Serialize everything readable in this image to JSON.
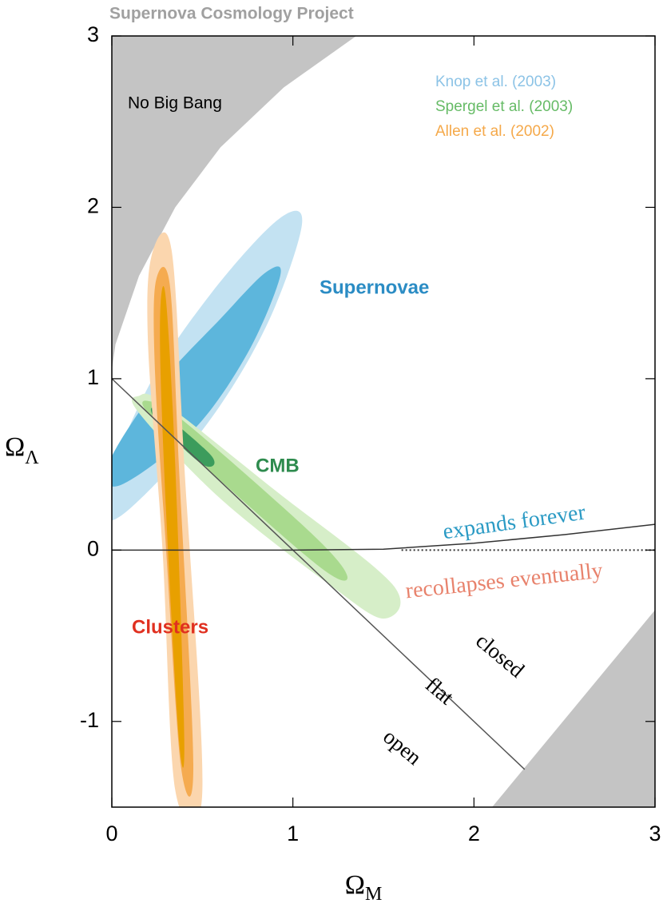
{
  "chart_data": {
    "type": "contour",
    "title": "Supernova Cosmology Project",
    "xlabel": {
      "symbol": "Ω",
      "subscript": "M"
    },
    "ylabel": {
      "symbol": "Ω",
      "subscript": "Λ"
    },
    "xlim": [
      0,
      3
    ],
    "ylim": [
      -1.5,
      3
    ],
    "xticks": [
      0,
      1,
      2,
      3
    ],
    "yticks": [
      -1,
      0,
      1,
      2,
      3
    ],
    "series": [
      {
        "name": "Knop et al. (2003)",
        "label": "Supernovae",
        "color": "#8cc3e6",
        "label_color": "#2b8cc4",
        "contours": [
          {
            "color": "#c3e2f2",
            "x": [
              1.05,
              0.85,
              0.5,
              0.05,
              -0.05,
              0.2,
              0.55,
              0.92
            ],
            "y": [
              1.9,
              1.3,
              0.7,
              0.2,
              0.3,
              0.95,
              1.5,
              1.93
            ]
          },
          {
            "color": "#5db6dc",
            "x": [
              0.93,
              0.75,
              0.45,
              0.05,
              -0.02,
              0.25,
              0.6,
              0.85
            ],
            "y": [
              1.6,
              1.15,
              0.7,
              0.38,
              0.5,
              0.95,
              1.35,
              1.62
            ]
          }
        ]
      },
      {
        "name": "Spergel et al. (2003)",
        "label": "CMB",
        "color": "#66bb66",
        "label_color": "#2e8b4e",
        "contours": [
          {
            "color": "#d6eec8",
            "x": [
              0.15,
              0.3,
              0.9,
              1.55,
              1.5,
              1.2,
              0.6,
              0.15
            ],
            "y": [
              0.9,
              0.85,
              0.35,
              -0.2,
              -0.4,
              -0.2,
              0.3,
              0.8
            ]
          },
          {
            "color": "#a9da8e",
            "x": [
              0.2,
              0.4,
              1.1,
              1.3,
              1.15,
              0.5,
              0.2
            ],
            "y": [
              0.87,
              0.75,
              0.1,
              -0.15,
              -0.1,
              0.5,
              0.8
            ]
          },
          {
            "color": "#3c9c5c",
            "x": [
              0.25,
              0.55,
              0.5,
              0.25
            ],
            "y": [
              0.82,
              0.55,
              0.5,
              0.75
            ]
          }
        ]
      },
      {
        "name": "Allen et al. (2002)",
        "label": "Clusters",
        "color": "#f5a94a",
        "label_color": "#e03020",
        "contours": [
          {
            "color": "#fbd6ae",
            "x": [
              0.22,
              0.33,
              0.4,
              0.5,
              0.35,
              0.28,
              0.2
            ],
            "y": [
              1.72,
              1.75,
              0.5,
              -1.4,
              -1.4,
              0,
              1.2
            ]
          },
          {
            "color": "#f5ab50",
            "x": [
              0.24,
              0.32,
              0.37,
              0.45,
              0.38,
              0.3,
              0.24
            ],
            "y": [
              1.55,
              1.55,
              0.5,
              -1.25,
              -1.25,
              0,
              1.0
            ]
          },
          {
            "color": "#e8a000",
            "x": [
              0.27,
              0.3,
              0.35,
              0.4,
              0.37,
              0.31,
              0.27
            ],
            "y": [
              1.45,
              1.45,
              0.5,
              -1.1,
              -1.1,
              0,
              1.0
            ]
          }
        ]
      }
    ],
    "regions": [
      {
        "color": "#c4c4c4",
        "x": [
          0,
          0,
          0.02,
          0.15,
          0.35,
          0.6,
          0.95,
          1.35
        ],
        "y": [
          3,
          1.05,
          1.2,
          1.6,
          2.0,
          2.35,
          2.7,
          3
        ]
      },
      {
        "color": "#c4c4c4",
        "x": [
          2.1,
          3,
          3
        ],
        "y": [
          -1.5,
          -0.35,
          -1.5
        ]
      }
    ],
    "lines": [
      {
        "color": "#555555",
        "style": "solid",
        "x": [
          0,
          2.28
        ],
        "y": [
          1,
          -1.28
        ]
      },
      {
        "color": "#333333",
        "style": "solid",
        "x": [
          0,
          1,
          1.5,
          2,
          2.5,
          3
        ],
        "y": [
          0,
          0,
          0.005,
          0.04,
          0.09,
          0.15
        ]
      },
      {
        "color": "#333333",
        "style": "dotted",
        "x": [
          1.6,
          3
        ],
        "y": [
          0,
          0
        ]
      }
    ],
    "annotations": [
      "No Big Bang",
      "expands forever",
      "recollapses eventually",
      "closed",
      "flat",
      "open"
    ]
  }
}
